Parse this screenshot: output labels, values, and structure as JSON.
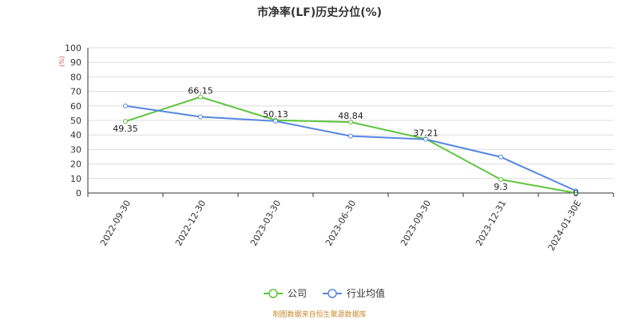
{
  "title": "市净率(LF)历史分位(%)",
  "footer": "制图数据来自恒生聚源数据库",
  "chart_data": {
    "type": "line",
    "title": "市净率(LF)历史分位(%)",
    "ylabel": "(%)",
    "ylim": [
      0,
      100
    ],
    "yticks": [
      0,
      10,
      20,
      30,
      40,
      50,
      60,
      70,
      80,
      90,
      100
    ],
    "grid": true,
    "legend_position": "bottom",
    "categories": [
      "2022-09-30",
      "2022-12-30",
      "2023-03-30",
      "2023-06-30",
      "2023-09-30",
      "2023-12-31",
      "2024-01-30E"
    ],
    "series": [
      {
        "name": "公司",
        "color": "#5cc43c",
        "values": [
          49.35,
          66.15,
          50.13,
          48.84,
          37.21,
          9.3,
          0
        ],
        "labels": [
          "49.35",
          "66.15",
          "50.13",
          "48.84",
          "37.21",
          "9.3",
          "0"
        ]
      },
      {
        "name": "行业均值",
        "color": "#5586e0",
        "values": [
          60,
          52.5,
          49.5,
          39.2,
          37,
          24.8,
          1.5
        ]
      }
    ]
  }
}
